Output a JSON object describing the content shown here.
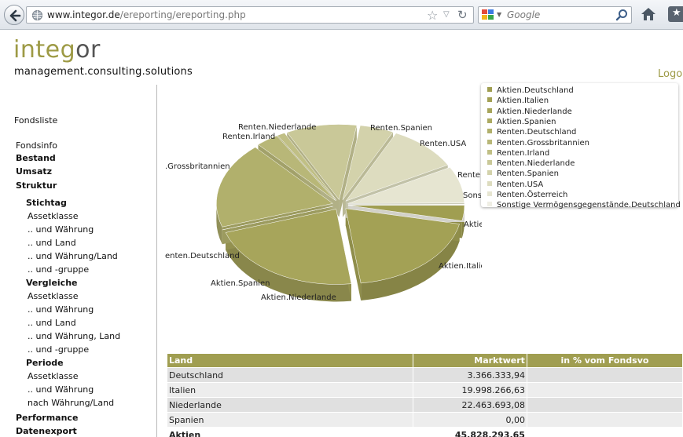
{
  "browser": {
    "url_domain": "www.integor.de",
    "url_path": "/ereporting/ereporting.php",
    "search_provider": "Google"
  },
  "header": {
    "logo_part1": "integ",
    "logo_part2": "or",
    "tagline": "management.consulting.solutions",
    "right_logo": "Logo"
  },
  "sidebar": {
    "fondsliste": "Fondsliste",
    "fondsinfo": "Fondsinfo",
    "bestand": "Bestand",
    "umsatz": "Umsatz",
    "struktur": "Struktur",
    "stichtag": "Stichtag",
    "stichtag_items": [
      "Assetklasse",
      ".. und Währung",
      ".. und Land",
      ".. und Währung/Land",
      ".. und -gruppe"
    ],
    "vergleiche": "Vergleiche",
    "vergleiche_items": [
      "Assetklasse",
      ".. und Währung",
      ".. und Land",
      ".. und Währung, Land",
      ".. und -gruppe"
    ],
    "periode": "Periode",
    "periode_items": [
      "Assetklasse",
      ".. und Währung",
      "nach Währung/Land"
    ],
    "performance": "Performance",
    "datenexport": "Datenexport"
  },
  "chart_data": {
    "type": "pie",
    "slices": [
      {
        "label": "Aktien.Deutschland",
        "value": 3366333.94,
        "color": "#a09e51"
      },
      {
        "label": "Aktien.Italien",
        "value": 19998266.63,
        "color": "#a3a155"
      },
      {
        "label": "Aktien.Niederlande",
        "value": 22463693.08,
        "color": "#a7a55b"
      },
      {
        "label": "Aktien.Spanien",
        "value": 0,
        "color": "#acaa62"
      },
      {
        "label": "Renten.Deutschland",
        "value": 18800000,
        "color": "#b1b06c"
      },
      {
        "label": "Renten.Grossbritannien",
        "value": 3200000,
        "color": "#b8b778"
      },
      {
        "label": "Renten.Irland",
        "value": 1100000,
        "color": "#c0bf85"
      },
      {
        "label": "Renten.Niederlande",
        "value": 10000000,
        "color": "#c9c898"
      },
      {
        "label": "Renten.Spanien",
        "value": 4800000,
        "color": "#d3d2ab"
      },
      {
        "label": "Renten.USA",
        "value": 10100000,
        "color": "#dddcbf"
      },
      {
        "label": "Renten.Österreich",
        "value": 8000000,
        "color": "#e6e5d1"
      },
      {
        "label": "Sonstige Vermögensgegenstände.Deutschland",
        "value": 120000,
        "color": "#efeee4"
      }
    ],
    "visible_labels": {
      "aktien_deutschland": "Aktien.Deutschland",
      "aktien_italien": "Aktien.Italien",
      "aktien_niederlande": "Aktien.Niederlande",
      "aktien_spanien": "Aktien.Spanien",
      "renten_deutschland": "enten.Deutschland",
      "renten_gb": ".Grossbritannien",
      "renten_irland": "Renten.Irland",
      "renten_niederlande": "Renten.Niederlande",
      "renten_spanien": "Renten.Spanien",
      "renten_usa": "Renten.USA",
      "renten_oe": "Renten",
      "sonstige": "Sons"
    }
  },
  "table": {
    "headers": [
      "Land",
      "Marktwert",
      "in % vom Fondsvo"
    ],
    "rows": [
      [
        "Deutschland",
        "3.366.333,94",
        ""
      ],
      [
        "Italien",
        "19.998.266,63",
        ""
      ],
      [
        "Niederlande",
        "22.463.693,08",
        ""
      ],
      [
        "Spanien",
        "0,00",
        ""
      ]
    ],
    "summary": [
      "Aktien",
      "45.828.293,65",
      ""
    ]
  }
}
